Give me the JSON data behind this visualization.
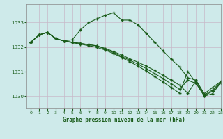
{
  "xlabel": "Graphe pression niveau de la mer (hPa)",
  "bg_color": "#ceeaea",
  "grid_color": "#c8b8c8",
  "line_color": "#1a5c1a",
  "xlim": [
    -0.5,
    23
  ],
  "ylim": [
    1029.5,
    1033.75
  ],
  "yticks": [
    1030,
    1031,
    1032,
    1033
  ],
  "xticks": [
    0,
    1,
    2,
    3,
    4,
    5,
    6,
    7,
    8,
    9,
    10,
    11,
    12,
    13,
    14,
    15,
    16,
    17,
    18,
    19,
    20,
    21,
    22,
    23
  ],
  "series": [
    [
      1032.2,
      1032.5,
      1032.6,
      1032.35,
      1032.25,
      1032.3,
      1032.7,
      1033.0,
      1033.15,
      1033.3,
      1033.4,
      1033.1,
      1033.1,
      1032.9,
      1032.55,
      1032.2,
      1031.85,
      1031.5,
      1031.2,
      1030.75,
      1030.65,
      1030.1,
      1030.35,
      1030.6
    ],
    [
      1032.2,
      1032.5,
      1032.6,
      1032.35,
      1032.25,
      1032.2,
      1032.15,
      1032.1,
      1032.05,
      1031.95,
      1031.82,
      1031.68,
      1031.52,
      1031.38,
      1031.22,
      1031.05,
      1030.85,
      1030.65,
      1030.45,
      1030.12,
      1030.62,
      1030.05,
      1030.25,
      1030.58
    ],
    [
      1032.2,
      1032.5,
      1032.6,
      1032.35,
      1032.25,
      1032.2,
      1032.15,
      1032.1,
      1032.05,
      1031.92,
      1031.78,
      1031.62,
      1031.46,
      1031.3,
      1031.12,
      1030.92,
      1030.72,
      1030.5,
      1030.28,
      1030.65,
      1030.52,
      1030.02,
      1030.2,
      1030.55
    ],
    [
      1032.2,
      1032.5,
      1032.6,
      1032.35,
      1032.25,
      1032.18,
      1032.12,
      1032.06,
      1031.99,
      1031.88,
      1031.74,
      1031.58,
      1031.4,
      1031.22,
      1031.02,
      1030.8,
      1030.58,
      1030.35,
      1030.12,
      1031.0,
      1030.55,
      1030.0,
      1030.1,
      1030.55
    ]
  ]
}
